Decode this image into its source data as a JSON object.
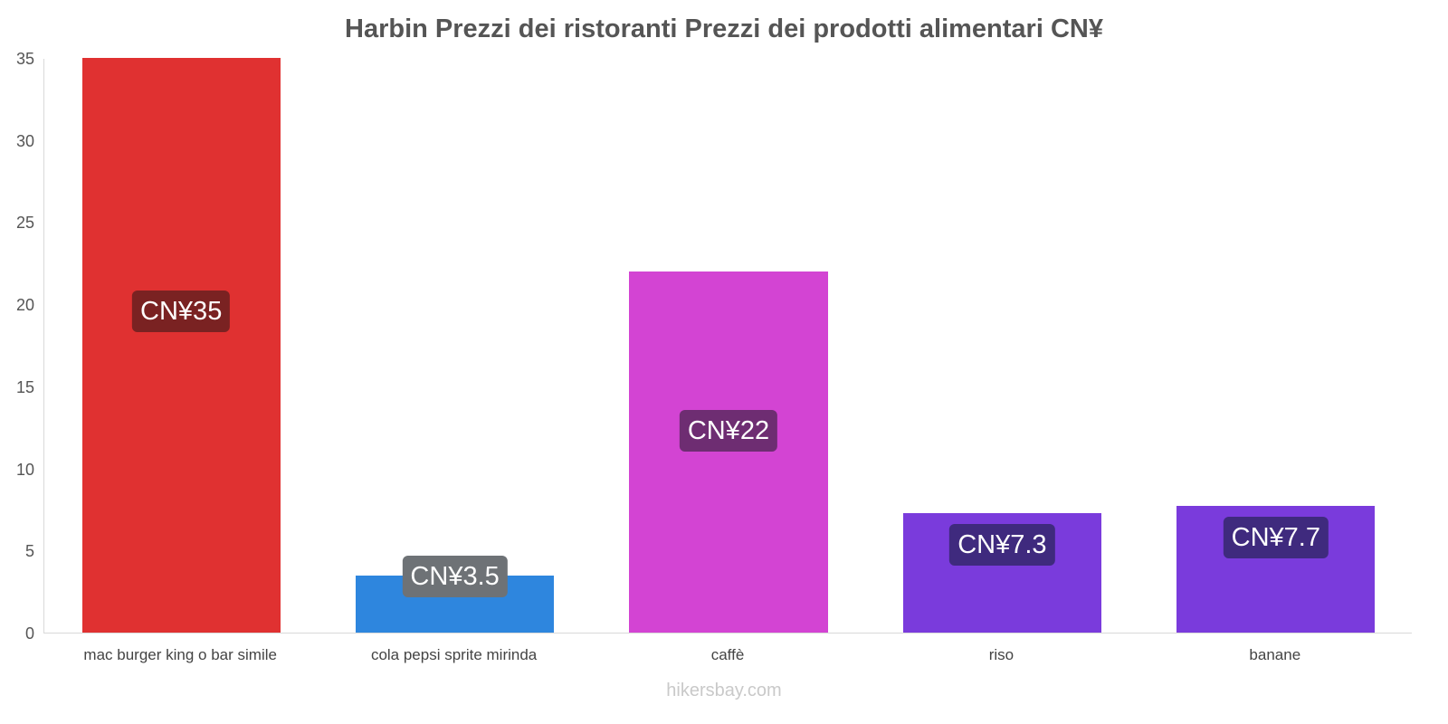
{
  "footer": "hikersbay.com",
  "chart_data": {
    "type": "bar",
    "title": "Harbin Prezzi dei ristoranti Prezzi dei prodotti alimentari CN¥",
    "categories": [
      "mac burger king o bar simile",
      "cola pepsi sprite mirinda",
      "caffè",
      "riso",
      "banane"
    ],
    "values": [
      35,
      3.5,
      22,
      7.3,
      7.7
    ],
    "value_labels": [
      "CN¥35",
      "CN¥3.5",
      "CN¥22",
      "CN¥7.3",
      "CN¥7.7"
    ],
    "bar_colors": [
      "#e03131",
      "#2e86de",
      "#d344d3",
      "#7a3bdc",
      "#7a3bdc"
    ],
    "label_bg_colors": [
      "#7a2222",
      "#6e7276",
      "#6e2d72",
      "#3f2a7e",
      "#3f2a7e"
    ],
    "currency": "CN¥",
    "xlabel": "",
    "ylabel": "",
    "ylim": [
      0,
      35
    ],
    "yticks": [
      0,
      5,
      10,
      15,
      20,
      25,
      30,
      35
    ],
    "grid": false,
    "legend": false
  }
}
